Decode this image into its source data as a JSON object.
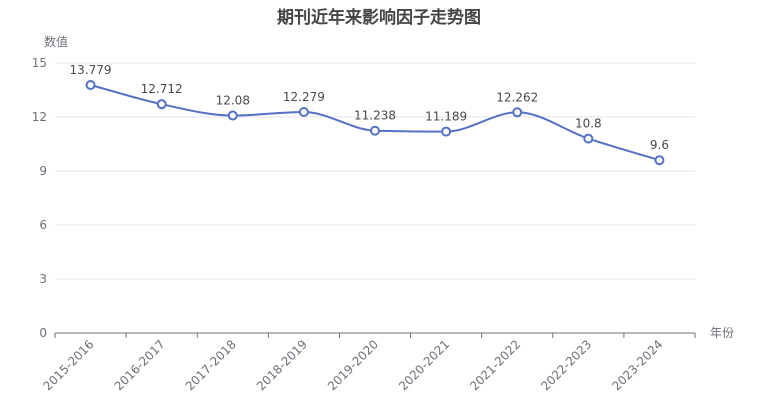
{
  "chart_data": {
    "type": "line",
    "title": "期刊近年来影响因子走势图",
    "xlabel": "年份",
    "ylabel": "数值",
    "categories": [
      "2015-2016",
      "2016-2017",
      "2017-2018",
      "2018-2019",
      "2019-2020",
      "2020-2021",
      "2021-2022",
      "2022-2023",
      "2023-2024"
    ],
    "series": [
      {
        "values": [
          13.779,
          12.712,
          12.08,
          12.279,
          11.238,
          11.189,
          12.262,
          10.8,
          9.6
        ]
      }
    ],
    "data_labels": [
      "13.779",
      "12.712",
      "12.08",
      "12.279",
      "11.238",
      "11.189",
      "12.262",
      "10.8",
      "9.6"
    ],
    "y_ticks": [
      0,
      3,
      6,
      9,
      12,
      15
    ],
    "ylim": [
      0,
      15
    ],
    "smooth": true,
    "grid": true,
    "colors": {
      "line": "#5470c6",
      "grid": "#e0e6f1",
      "axis": "#6e7079"
    }
  }
}
